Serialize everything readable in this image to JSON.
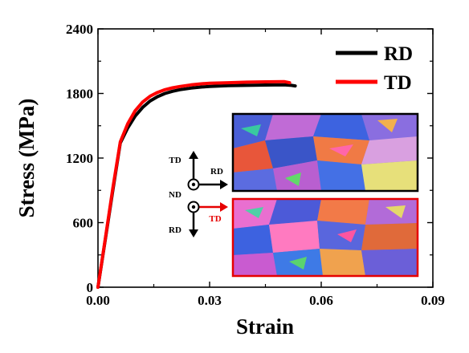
{
  "chart_data": {
    "type": "line",
    "xlabel": "Strain",
    "ylabel": "Stress (MPa)",
    "xlim": [
      0,
      0.09
    ],
    "ylim": [
      0,
      2400
    ],
    "xticks": [
      "0.00",
      "0.03",
      "0.06",
      "0.09"
    ],
    "xtick_values": [
      0,
      0.03,
      0.06,
      0.09
    ],
    "yticks": [
      "0",
      "600",
      "1200",
      "1800",
      "2400"
    ],
    "ytick_values": [
      0,
      600,
      1200,
      1800,
      2400
    ],
    "grid": false,
    "legend_position": "top-right",
    "series": [
      {
        "name": "RD",
        "color": "#000000",
        "x": [
          0,
          0.002,
          0.004,
          0.006,
          0.008,
          0.01,
          0.012,
          0.014,
          0.016,
          0.018,
          0.02,
          0.022,
          0.025,
          0.028,
          0.03,
          0.035,
          0.04,
          0.045,
          0.05,
          0.052,
          0.053
        ],
        "y": [
          0,
          450,
          900,
          1340,
          1480,
          1590,
          1670,
          1730,
          1770,
          1800,
          1820,
          1835,
          1850,
          1860,
          1865,
          1872,
          1875,
          1878,
          1880,
          1875,
          1870
        ]
      },
      {
        "name": "TD",
        "color": "#ff0000",
        "x": [
          0,
          0.002,
          0.004,
          0.006,
          0.008,
          0.01,
          0.012,
          0.014,
          0.016,
          0.018,
          0.02,
          0.022,
          0.025,
          0.028,
          0.03,
          0.035,
          0.04,
          0.045,
          0.05,
          0.0515
        ],
        "y": [
          0,
          460,
          920,
          1350,
          1520,
          1640,
          1720,
          1775,
          1810,
          1835,
          1852,
          1865,
          1880,
          1890,
          1895,
          1900,
          1905,
          1908,
          1910,
          1900
        ]
      }
    ]
  },
  "inset": {
    "orientation_labels": {
      "td": "TD",
      "rd_black": "RD",
      "nd": "ND",
      "td_red": "TD",
      "rd_bottom": "RD"
    }
  }
}
